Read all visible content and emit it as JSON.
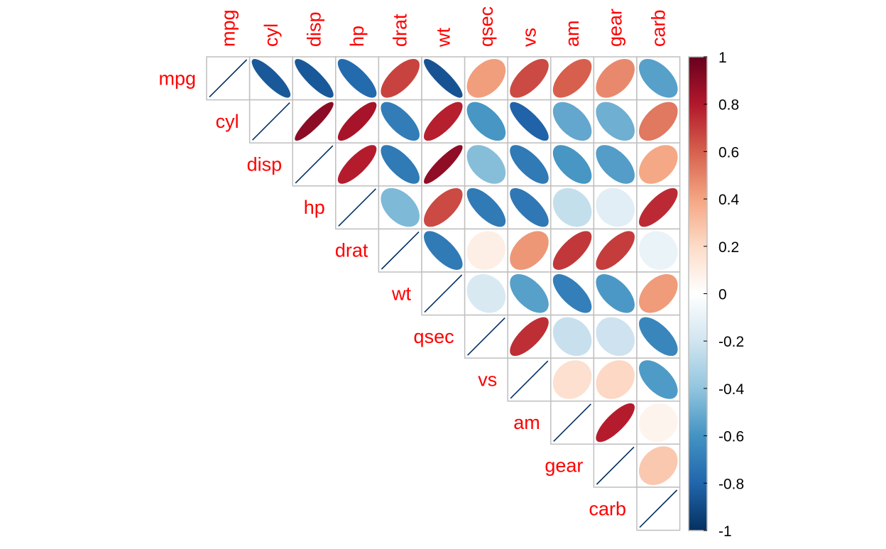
{
  "chart_data": {
    "type": "heatmap",
    "variables": [
      "mpg",
      "cyl",
      "disp",
      "hp",
      "drat",
      "wt",
      "qsec",
      "vs",
      "am",
      "gear",
      "carb"
    ],
    "layout": "upper-triangle",
    "method": "ellipse",
    "diagonal": "line",
    "matrix": [
      [
        1.0,
        -0.85,
        -0.85,
        -0.78,
        0.68,
        -0.87,
        0.42,
        0.66,
        0.6,
        0.48,
        -0.55
      ],
      [
        -0.85,
        1.0,
        0.9,
        0.83,
        -0.7,
        0.78,
        -0.59,
        -0.81,
        -0.52,
        -0.49,
        0.53
      ],
      [
        -0.85,
        0.9,
        1.0,
        0.79,
        -0.71,
        0.89,
        -0.43,
        -0.71,
        -0.59,
        -0.56,
        0.39
      ],
      [
        -0.78,
        0.83,
        0.79,
        1.0,
        -0.45,
        0.66,
        -0.71,
        -0.72,
        -0.24,
        -0.13,
        0.75
      ],
      [
        0.68,
        -0.7,
        -0.71,
        -0.45,
        1.0,
        -0.71,
        0.09,
        0.44,
        0.71,
        0.7,
        -0.09
      ],
      [
        -0.87,
        0.78,
        0.89,
        0.66,
        -0.71,
        1.0,
        -0.17,
        -0.55,
        -0.69,
        -0.58,
        0.43
      ],
      [
        0.42,
        -0.59,
        -0.43,
        -0.71,
        0.09,
        -0.17,
        1.0,
        0.74,
        -0.23,
        -0.21,
        -0.66
      ],
      [
        0.66,
        -0.81,
        -0.71,
        -0.72,
        0.44,
        -0.55,
        0.74,
        1.0,
        0.17,
        0.21,
        -0.57
      ],
      [
        0.6,
        -0.52,
        -0.59,
        -0.24,
        0.71,
        -0.69,
        -0.23,
        0.17,
        1.0,
        0.79,
        0.06
      ],
      [
        0.48,
        -0.49,
        -0.56,
        -0.13,
        0.7,
        -0.58,
        -0.21,
        0.21,
        0.79,
        1.0,
        0.27
      ],
      [
        -0.55,
        0.53,
        0.39,
        0.75,
        -0.09,
        0.43,
        -0.66,
        -0.57,
        0.06,
        0.27,
        1.0
      ]
    ],
    "colorbar": {
      "range": [
        -1,
        1
      ],
      "ticks": [
        "1",
        "0.8",
        "0.6",
        "0.4",
        "0.2",
        "0",
        "-0.2",
        "-0.4",
        "-0.6",
        "-0.8",
        "-1"
      ],
      "colors": [
        "#67001F",
        "#B2182B",
        "#D6604D",
        "#F4A582",
        "#FDDBC7",
        "#FFFFFF",
        "#D1E5F0",
        "#92C5DE",
        "#4393C3",
        "#2166AC",
        "#053061"
      ]
    },
    "label_color": "#FF0000",
    "grid": true,
    "legend_position": "right"
  }
}
